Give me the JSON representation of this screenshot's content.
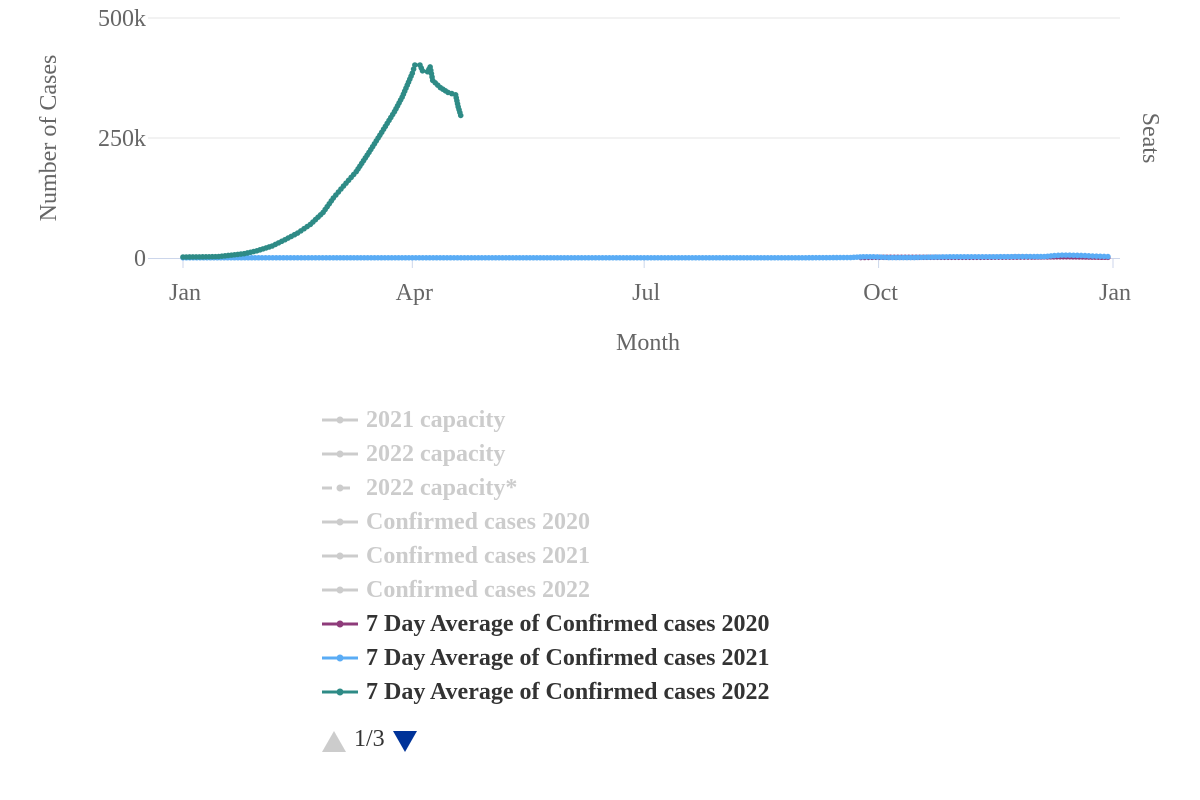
{
  "chart_data": {
    "type": "line",
    "ylabel": "Number of Cases",
    "ylabel_right": "Seats",
    "xlabel": "Month",
    "x_ticks": [
      "Jan",
      "Apr",
      "Jul",
      "Oct",
      "Jan"
    ],
    "y_ticks": [
      "0",
      "250k",
      "500k"
    ],
    "ylim": [
      0,
      500000
    ],
    "x_domain": [
      "2022-01-01",
      "2023-01-01"
    ],
    "grid": true,
    "series": [
      {
        "name": "7 Day Average of Confirmed cases 2020",
        "color": "#8e3b7a",
        "points": [
          [
            "2022-09-24",
            1000
          ],
          [
            "2022-09-30",
            1500
          ],
          [
            "2022-10-10",
            1500
          ],
          [
            "2022-10-20",
            1500
          ],
          [
            "2022-10-31",
            1500
          ],
          [
            "2022-11-10",
            1500
          ],
          [
            "2022-11-20",
            1800
          ],
          [
            "2022-11-30",
            2000
          ],
          [
            "2022-12-05",
            2200
          ],
          [
            "2022-12-10",
            2500
          ],
          [
            "2022-12-15",
            2500
          ],
          [
            "2022-12-20",
            2200
          ],
          [
            "2022-12-25",
            1800
          ],
          [
            "2022-12-30",
            1500
          ]
        ]
      },
      {
        "name": "7 Day Average of Confirmed cases 2021",
        "color": "#5aacf5",
        "points": [
          [
            "2022-01-01",
            500
          ],
          [
            "2022-02-01",
            500
          ],
          [
            "2022-03-01",
            500
          ],
          [
            "2022-04-01",
            500
          ],
          [
            "2022-05-01",
            500
          ],
          [
            "2022-06-01",
            500
          ],
          [
            "2022-07-01",
            500
          ],
          [
            "2022-08-01",
            500
          ],
          [
            "2022-09-01",
            500
          ],
          [
            "2022-09-20",
            1000
          ],
          [
            "2022-09-25",
            2500
          ],
          [
            "2022-09-29",
            2500
          ],
          [
            "2022-10-05",
            1000
          ],
          [
            "2022-10-15",
            1000
          ],
          [
            "2022-10-29",
            2500
          ],
          [
            "2022-11-05",
            2500
          ],
          [
            "2022-11-15",
            2500
          ],
          [
            "2022-11-25",
            3000
          ],
          [
            "2022-12-01",
            3000
          ],
          [
            "2022-12-05",
            3000
          ],
          [
            "2022-12-09",
            5000
          ],
          [
            "2022-12-12",
            6000
          ],
          [
            "2022-12-15",
            6000
          ],
          [
            "2022-12-18",
            5500
          ],
          [
            "2022-12-21",
            5000
          ],
          [
            "2022-12-24",
            4000
          ],
          [
            "2022-12-27",
            3500
          ],
          [
            "2022-12-30",
            3000
          ]
        ]
      },
      {
        "name": "7 Day Average of Confirmed cases 2022",
        "color": "#2e8b86",
        "points": [
          [
            "2022-01-01",
            2000
          ],
          [
            "2022-01-10",
            2500
          ],
          [
            "2022-01-15",
            3000
          ],
          [
            "2022-01-20",
            6000
          ],
          [
            "2022-01-25",
            9000
          ],
          [
            "2022-01-30",
            15000
          ],
          [
            "2022-02-05",
            25000
          ],
          [
            "2022-02-10",
            38000
          ],
          [
            "2022-02-15",
            52000
          ],
          [
            "2022-02-20",
            70000
          ],
          [
            "2022-02-25",
            95000
          ],
          [
            "2022-03-01",
            125000
          ],
          [
            "2022-03-05",
            150000
          ],
          [
            "2022-03-10",
            180000
          ],
          [
            "2022-03-15",
            220000
          ],
          [
            "2022-03-20",
            262000
          ],
          [
            "2022-03-25",
            305000
          ],
          [
            "2022-03-28",
            335000
          ],
          [
            "2022-03-30",
            360000
          ],
          [
            "2022-04-01",
            385000
          ],
          [
            "2022-04-02",
            402000
          ],
          [
            "2022-04-04",
            402000
          ],
          [
            "2022-04-05",
            390000
          ],
          [
            "2022-04-07",
            388000
          ],
          [
            "2022-04-08",
            398000
          ],
          [
            "2022-04-09",
            370000
          ],
          [
            "2022-04-12",
            355000
          ],
          [
            "2022-04-15",
            345000
          ],
          [
            "2022-04-18",
            340000
          ],
          [
            "2022-04-19",
            315000
          ],
          [
            "2022-04-20",
            297000
          ]
        ]
      }
    ]
  },
  "legend": {
    "items": [
      {
        "label": "2021 capacity",
        "state": "hidden",
        "dashed": false
      },
      {
        "label": "2022 capacity",
        "state": "hidden",
        "dashed": false
      },
      {
        "label": "2022 capacity*",
        "state": "hidden",
        "dashed": true
      },
      {
        "label": "Confirmed cases 2020",
        "state": "hidden",
        "dashed": false
      },
      {
        "label": "Confirmed cases 2021",
        "state": "hidden",
        "dashed": false
      },
      {
        "label": "Confirmed cases 2022",
        "state": "hidden",
        "dashed": false
      },
      {
        "label": "7 Day Average of Confirmed cases 2020",
        "state": "visible",
        "dashed": false
      },
      {
        "label": "7 Day Average of Confirmed cases 2021",
        "state": "visible",
        "dashed": false
      },
      {
        "label": "7 Day Average of Confirmed cases 2022",
        "state": "visible",
        "dashed": false
      }
    ],
    "hidden_color": "#cccccc"
  },
  "pager": {
    "text": "1/3",
    "up_color": "#cccccc",
    "down_color": "#003399"
  },
  "colors": {
    "grid": "#e6e6e6",
    "axis_line": "#ccd6eb",
    "text": "#666666"
  }
}
